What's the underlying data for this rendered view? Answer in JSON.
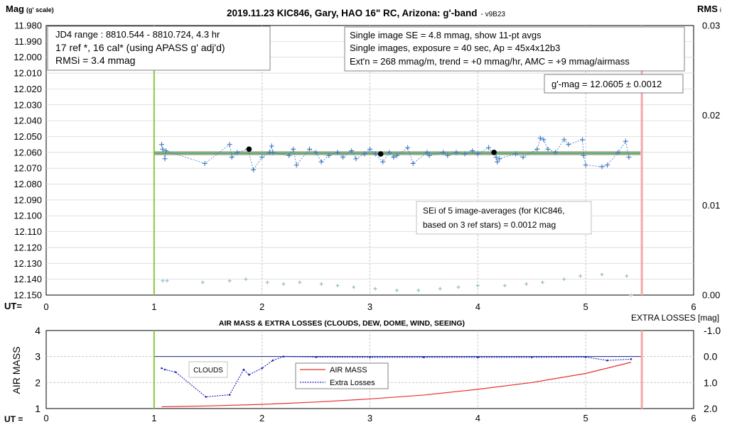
{
  "top": {
    "title": "2019.11.23 KIC846, Gary, HAO 16\" RC, Arizona: g'-band",
    "version": "- v9B23",
    "ylabel": "Mag",
    "ylabel_sub": "(g' scale)",
    "y2label": "RMS",
    "y2label_sub": "i",
    "ut_label": "UT=",
    "info_left": [
      "JD4 range : 8810.544 - 8810.724,  4.3  hr",
      "17 ref *, 16 cal* (using APASS g' adj'd)",
      "RMSi = 3.4 mmag"
    ],
    "info_right": [
      "Single image SE = 4.8 mmag, show  11-pt avgs",
      "Single images, exposure = 40 sec, Ap = 45x4x12b3",
      "Ext'n = 268 mmag/m, trend =  +0 mmag/hr, AMC = +9 mmag/airmass"
    ],
    "gmag": "g'-mag = 12.0605 ± 0.0012",
    "sei": [
      "SEi of 5 image-averages (for KIC846,",
      "based on 3 ref stars) = 0.0012 mag"
    ]
  },
  "bottom": {
    "title": "AIR MASS & EXTRA LOSSES (CLOUDS, DEW, DOME, WIND, SEEING)",
    "ylabel": "AIR MASS",
    "y2label": "EXTRA LOSSES [mag]",
    "ut_label": "UT =",
    "clouds": "CLOUDS"
  },
  "colors": {
    "data": "#3b78c2",
    "rms": "#7fb2c4",
    "fit_green": "#6aaa6a",
    "fit_gray": "#a0a0a0",
    "vline_green": "#8cc83c",
    "vline_pink": "#f4a8a8",
    "airmass": "#e53030",
    "losses": "#2020c0",
    "grid": "#c8c8c8"
  },
  "chart_data": [
    {
      "type": "scatter",
      "title": "2019.11.23 KIC846, Gary, HAO 16\" RC, Arizona: g'-band",
      "xlabel": "UT=",
      "ylabel": "Mag (g' scale)",
      "xlim": [
        0,
        6
      ],
      "ylim": [
        12.15,
        11.98
      ],
      "y2lim": [
        0.0,
        0.03
      ],
      "xticks": [
        "0",
        "1",
        "2",
        "3",
        "4",
        "5",
        "6"
      ],
      "yticks": [
        "11.980",
        "11.990",
        "12.000",
        "12.010",
        "12.020",
        "12.030",
        "12.040",
        "12.050",
        "12.060",
        "12.070",
        "12.080",
        "12.090",
        "12.100",
        "12.110",
        "12.120",
        "12.130",
        "12.140",
        "12.150"
      ],
      "y2ticks": [
        "0.03",
        "0.02",
        "0.01",
        "0.00"
      ],
      "fit_mag": 12.0605,
      "vlines": [
        1.0,
        5.52
      ],
      "series": [
        {
          "values": [
            [
              1.07,
              12.055
            ],
            [
              1.08,
              12.058
            ],
            [
              1.1,
              12.064
            ],
            [
              1.11,
              12.059
            ],
            [
              1.47,
              12.067
            ],
            [
              1.7,
              12.055
            ],
            [
              1.72,
              12.063
            ],
            [
              1.77,
              12.06
            ],
            [
              1.87,
              12.058
            ],
            [
              1.92,
              12.071
            ],
            [
              2.0,
              12.063
            ],
            [
              2.07,
              12.06
            ],
            [
              2.09,
              12.056
            ],
            [
              2.1,
              12.06
            ],
            [
              2.25,
              12.062
            ],
            [
              2.29,
              12.058
            ],
            [
              2.32,
              12.068
            ],
            [
              2.44,
              12.058
            ],
            [
              2.5,
              12.06
            ],
            [
              2.55,
              12.066
            ],
            [
              2.62,
              12.062
            ],
            [
              2.7,
              12.06
            ],
            [
              2.75,
              12.063
            ],
            [
              2.83,
              12.059
            ],
            [
              2.87,
              12.064
            ],
            [
              2.95,
              12.061
            ],
            [
              3.0,
              12.058
            ],
            [
              3.05,
              12.061
            ],
            [
              3.12,
              12.066
            ],
            [
              3.18,
              12.06
            ],
            [
              3.22,
              12.063
            ],
            [
              3.25,
              12.062
            ],
            [
              3.35,
              12.057
            ],
            [
              3.4,
              12.067
            ],
            [
              3.53,
              12.06
            ],
            [
              3.55,
              12.062
            ],
            [
              3.68,
              12.06
            ],
            [
              3.72,
              12.062
            ],
            [
              3.8,
              12.06
            ],
            [
              3.88,
              12.061
            ],
            [
              3.95,
              12.059
            ],
            [
              4.0,
              12.061
            ],
            [
              4.1,
              12.057
            ],
            [
              4.17,
              12.063
            ],
            [
              4.18,
              12.066
            ],
            [
              4.2,
              12.064
            ],
            [
              4.35,
              12.061
            ],
            [
              4.42,
              12.063
            ],
            [
              4.55,
              12.058
            ],
            [
              4.58,
              12.051
            ],
            [
              4.61,
              12.052
            ],
            [
              4.65,
              12.058
            ],
            [
              4.72,
              12.06
            ],
            [
              4.8,
              12.052
            ],
            [
              4.84,
              12.055
            ],
            [
              4.97,
              12.052
            ],
            [
              4.98,
              12.062
            ],
            [
              5.0,
              12.068
            ],
            [
              5.15,
              12.069
            ],
            [
              5.2,
              12.068
            ],
            [
              5.3,
              12.06
            ],
            [
              5.37,
              12.053
            ],
            [
              5.4,
              12.063
            ]
          ]
        },
        {
          "values": [
            [
              1.88,
              12.058
            ],
            [
              3.1,
              12.061
            ],
            [
              4.15,
              12.06
            ]
          ]
        },
        {
          "values": [
            [
              1.08,
              12.141
            ],
            [
              1.12,
              12.141
            ],
            [
              1.45,
              12.142
            ],
            [
              1.7,
              12.141
            ],
            [
              1.85,
              12.14
            ],
            [
              2.05,
              12.142
            ],
            [
              2.2,
              12.143
            ],
            [
              2.35,
              12.142
            ],
            [
              2.55,
              12.143
            ],
            [
              2.7,
              12.144
            ],
            [
              2.85,
              12.145
            ],
            [
              3.05,
              12.146
            ],
            [
              3.25,
              12.147
            ],
            [
              3.45,
              12.147
            ],
            [
              3.65,
              12.146
            ],
            [
              3.82,
              12.145
            ],
            [
              4.0,
              12.144
            ],
            [
              4.25,
              12.144
            ],
            [
              4.45,
              12.143
            ],
            [
              4.6,
              12.142
            ],
            [
              4.8,
              12.14
            ],
            [
              4.95,
              12.138
            ],
            [
              5.15,
              12.137
            ],
            [
              5.38,
              12.138
            ],
            [
              5.42,
              12.15
            ]
          ]
        }
      ]
    },
    {
      "type": "line",
      "title": "AIR MASS & EXTRA LOSSES (CLOUDS, DEW, DOME, WIND, SEEING)",
      "xlabel": "UT =",
      "ylabel": "AIR MASS",
      "y2label": "EXTRA LOSSES [mag]",
      "xlim": [
        0,
        6
      ],
      "ylim": [
        1,
        4
      ],
      "y2lim": [
        2.0,
        -1.0
      ],
      "xticks": [
        "0",
        "1",
        "2",
        "3",
        "4",
        "5",
        "6"
      ],
      "yticks": [
        "1",
        "2",
        "3",
        "4"
      ],
      "y2ticks": [
        "-1.0",
        "0.0",
        "1.0",
        "2.0"
      ],
      "vlines": [
        1.0,
        5.52
      ],
      "series": [
        {
          "name": "AIR MASS",
          "x": [
            1.07,
            1.5,
            2.0,
            2.5,
            3.0,
            3.5,
            4.0,
            4.5,
            5.0,
            5.42
          ],
          "values": [
            1.07,
            1.1,
            1.16,
            1.25,
            1.37,
            1.52,
            1.74,
            2.0,
            2.35,
            2.78
          ]
        },
        {
          "name": "Extra Losses",
          "x": [
            1.07,
            1.1,
            1.2,
            1.48,
            1.7,
            1.83,
            1.88,
            2.0,
            2.1,
            2.2,
            2.5,
            3.0,
            3.5,
            4.0,
            4.5,
            5.0,
            5.2,
            5.42
          ],
          "values": [
            0.45,
            0.5,
            0.6,
            1.55,
            1.47,
            0.5,
            0.7,
            0.45,
            0.15,
            0.0,
            0.02,
            0.03,
            0.03,
            0.03,
            0.03,
            0.02,
            0.15,
            0.1
          ]
        }
      ]
    }
  ]
}
